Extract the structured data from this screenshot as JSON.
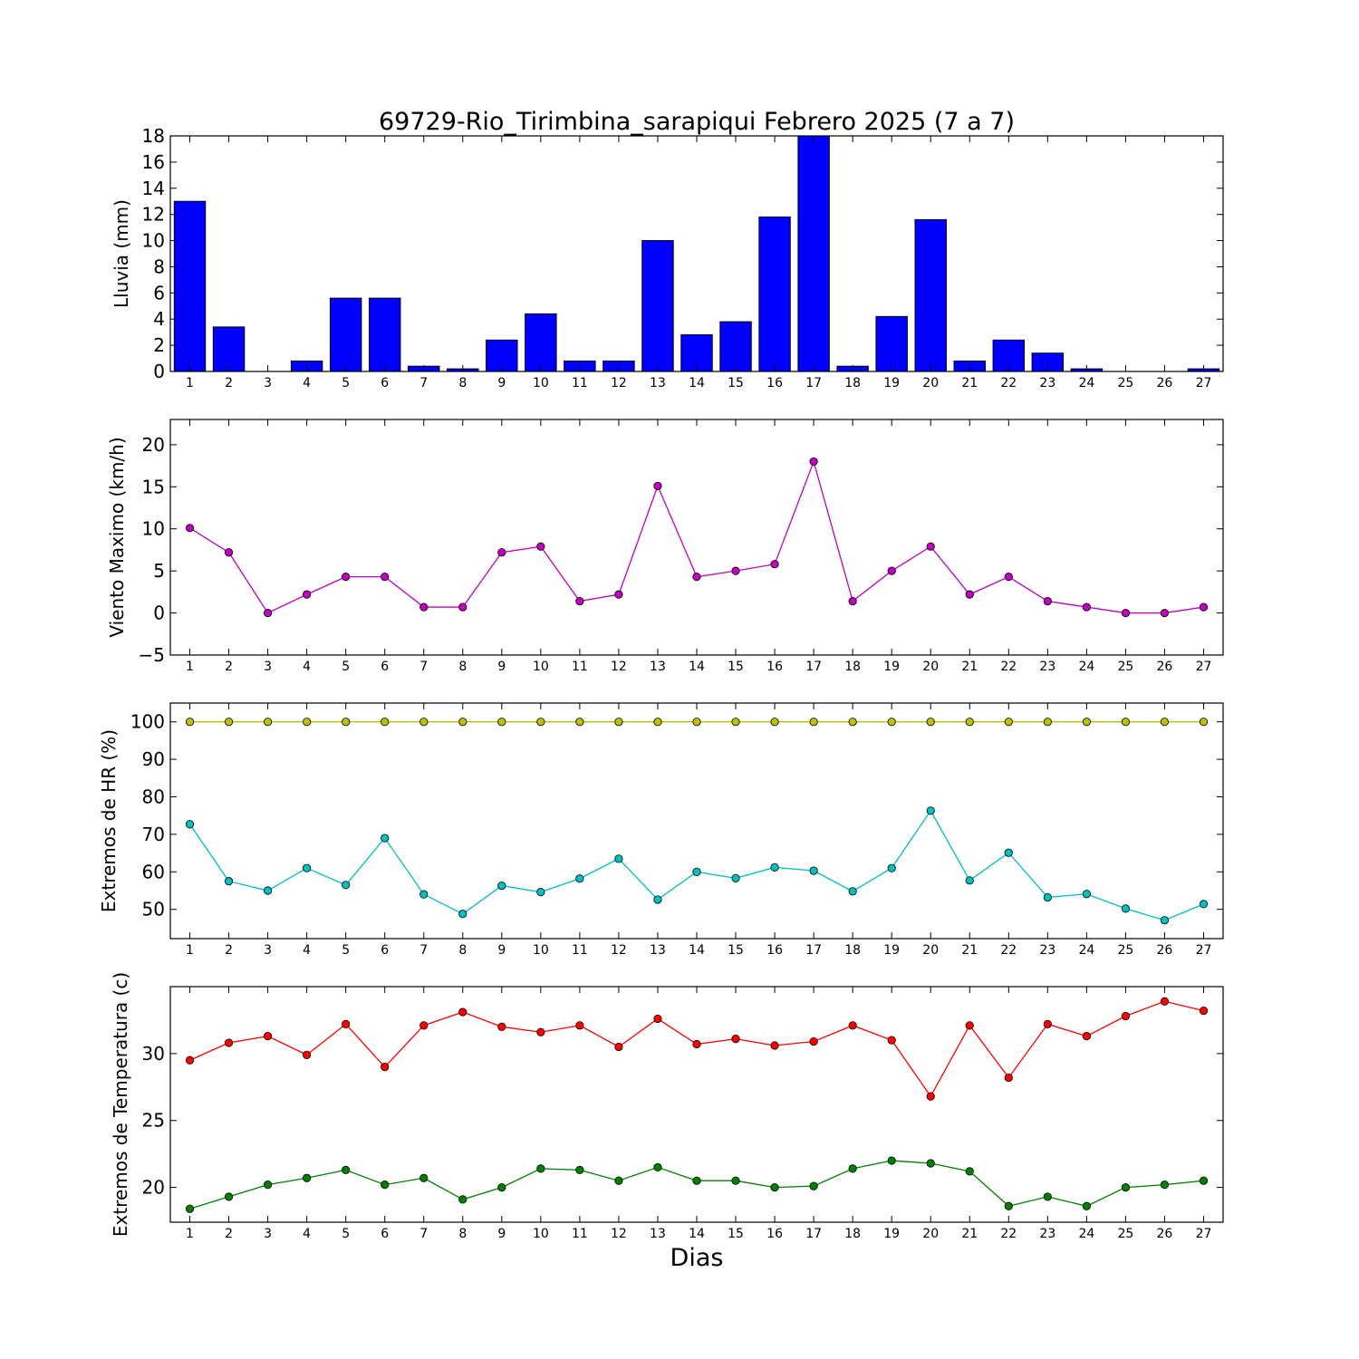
{
  "title": "69729-Rio_Tirimbina_sarapiqui Febrero 2025  (7 a 7)",
  "xlabel": "Dias",
  "colors": {
    "rain": "#0000ff",
    "wind": "#bf00bf",
    "hr_max": "#bfbf00",
    "hr_min": "#00bfbf",
    "t_max": "#ff0000",
    "t_min": "#008000"
  },
  "chart_data": [
    {
      "id": "lluvia",
      "type": "bar",
      "ylabel": "Lluvia (mm)",
      "ylim": [
        0,
        18
      ],
      "yticks": [
        0,
        2,
        4,
        6,
        8,
        10,
        12,
        14,
        16,
        18
      ],
      "yticklabels": [
        "0",
        "2",
        "4",
        "6",
        "8",
        "10",
        "12",
        "14",
        "16",
        "18"
      ],
      "xlim": [
        0.5,
        27.5
      ],
      "categories": [
        "1",
        "2",
        "3",
        "4",
        "5",
        "6",
        "7",
        "8",
        "9",
        "10",
        "11",
        "12",
        "13",
        "14",
        "15",
        "16",
        "17",
        "18",
        "19",
        "20",
        "21",
        "22",
        "23",
        "24",
        "25",
        "26",
        "27"
      ],
      "series": [
        {
          "color_key": "rain",
          "values": [
            13.0,
            3.4,
            0.0,
            0.8,
            5.6,
            5.6,
            0.4,
            0.2,
            2.4,
            4.4,
            0.8,
            0.8,
            10.0,
            2.8,
            3.8,
            11.8,
            18.0,
            0.4,
            4.2,
            11.6,
            0.8,
            2.4,
            1.4,
            0.2,
            0.0,
            0.0,
            0.2
          ]
        }
      ]
    },
    {
      "id": "viento",
      "type": "line",
      "ylabel": "Viento Maximo (km/h)",
      "ylim": [
        -5,
        23
      ],
      "yticks": [
        -5,
        0,
        5,
        10,
        15,
        20
      ],
      "yticklabels": [
        "−5",
        "0",
        "5",
        "10",
        "15",
        "20"
      ],
      "xlim": [
        0.5,
        27.5
      ],
      "categories": [
        "1",
        "2",
        "3",
        "4",
        "5",
        "6",
        "7",
        "8",
        "9",
        "10",
        "11",
        "12",
        "13",
        "14",
        "15",
        "16",
        "17",
        "18",
        "19",
        "20",
        "21",
        "22",
        "23",
        "24",
        "25",
        "26",
        "27"
      ],
      "series": [
        {
          "color_key": "wind",
          "values": [
            10.1,
            7.2,
            0.0,
            2.2,
            4.3,
            4.3,
            0.7,
            0.7,
            7.2,
            7.9,
            1.4,
            2.2,
            15.1,
            4.3,
            5.0,
            5.8,
            18.0,
            1.4,
            5.0,
            7.9,
            2.2,
            4.3,
            1.4,
            0.7,
            0.0,
            0.0,
            0.7
          ]
        }
      ]
    },
    {
      "id": "hr",
      "type": "line",
      "ylabel": "Extremos de HR (%)",
      "ylim": [
        42.2,
        105
      ],
      "yticks": [
        50,
        60,
        70,
        80,
        90,
        100
      ],
      "yticklabels": [
        "50",
        "60",
        "70",
        "80",
        "90",
        "100"
      ],
      "xlim": [
        0.5,
        27.5
      ],
      "categories": [
        "1",
        "2",
        "3",
        "4",
        "5",
        "6",
        "7",
        "8",
        "9",
        "10",
        "11",
        "12",
        "13",
        "14",
        "15",
        "16",
        "17",
        "18",
        "19",
        "20",
        "21",
        "22",
        "23",
        "24",
        "25",
        "26",
        "27"
      ],
      "series": [
        {
          "color_key": "hr_max",
          "values": [
            100,
            100,
            100,
            100,
            100,
            100,
            100,
            100,
            100,
            100,
            100,
            100,
            100,
            100,
            100,
            100,
            100,
            100,
            100,
            100,
            100,
            100,
            100,
            100,
            100,
            100,
            100
          ]
        },
        {
          "color_key": "hr_min",
          "values": [
            72.7,
            57.5,
            55.0,
            61.0,
            56.5,
            69.0,
            54.0,
            48.8,
            56.3,
            54.6,
            58.2,
            63.5,
            52.6,
            60.0,
            58.3,
            61.2,
            60.3,
            54.8,
            61.0,
            76.3,
            57.7,
            65.1,
            53.2,
            54.1,
            50.2,
            47.1,
            51.4
          ]
        }
      ]
    },
    {
      "id": "temperatura",
      "type": "line",
      "ylabel": "Extremos de Temperatura (c)",
      "ylim": [
        17.4,
        35.0
      ],
      "yticks": [
        20,
        25,
        30
      ],
      "yticklabels": [
        "20",
        "25",
        "30"
      ],
      "xlim": [
        0.5,
        27.5
      ],
      "categories": [
        "1",
        "2",
        "3",
        "4",
        "5",
        "6",
        "7",
        "8",
        "9",
        "10",
        "11",
        "12",
        "13",
        "14",
        "15",
        "16",
        "17",
        "18",
        "19",
        "20",
        "21",
        "22",
        "23",
        "24",
        "25",
        "26",
        "27"
      ],
      "series": [
        {
          "color_key": "t_max",
          "values": [
            29.5,
            30.8,
            31.3,
            29.9,
            32.2,
            29.0,
            32.1,
            33.1,
            32.0,
            31.6,
            32.1,
            30.5,
            32.6,
            30.7,
            31.1,
            30.6,
            30.9,
            32.1,
            31.0,
            26.8,
            32.1,
            28.2,
            32.2,
            31.3,
            32.8,
            33.9,
            33.2
          ]
        },
        {
          "color_key": "t_min",
          "values": [
            18.4,
            19.3,
            20.2,
            20.7,
            21.3,
            20.2,
            20.7,
            19.1,
            20.0,
            21.4,
            21.3,
            20.5,
            21.5,
            20.5,
            20.5,
            20.0,
            20.1,
            21.4,
            22.0,
            21.8,
            21.2,
            18.6,
            19.3,
            18.6,
            20.0,
            20.2,
            20.5
          ]
        }
      ]
    }
  ]
}
